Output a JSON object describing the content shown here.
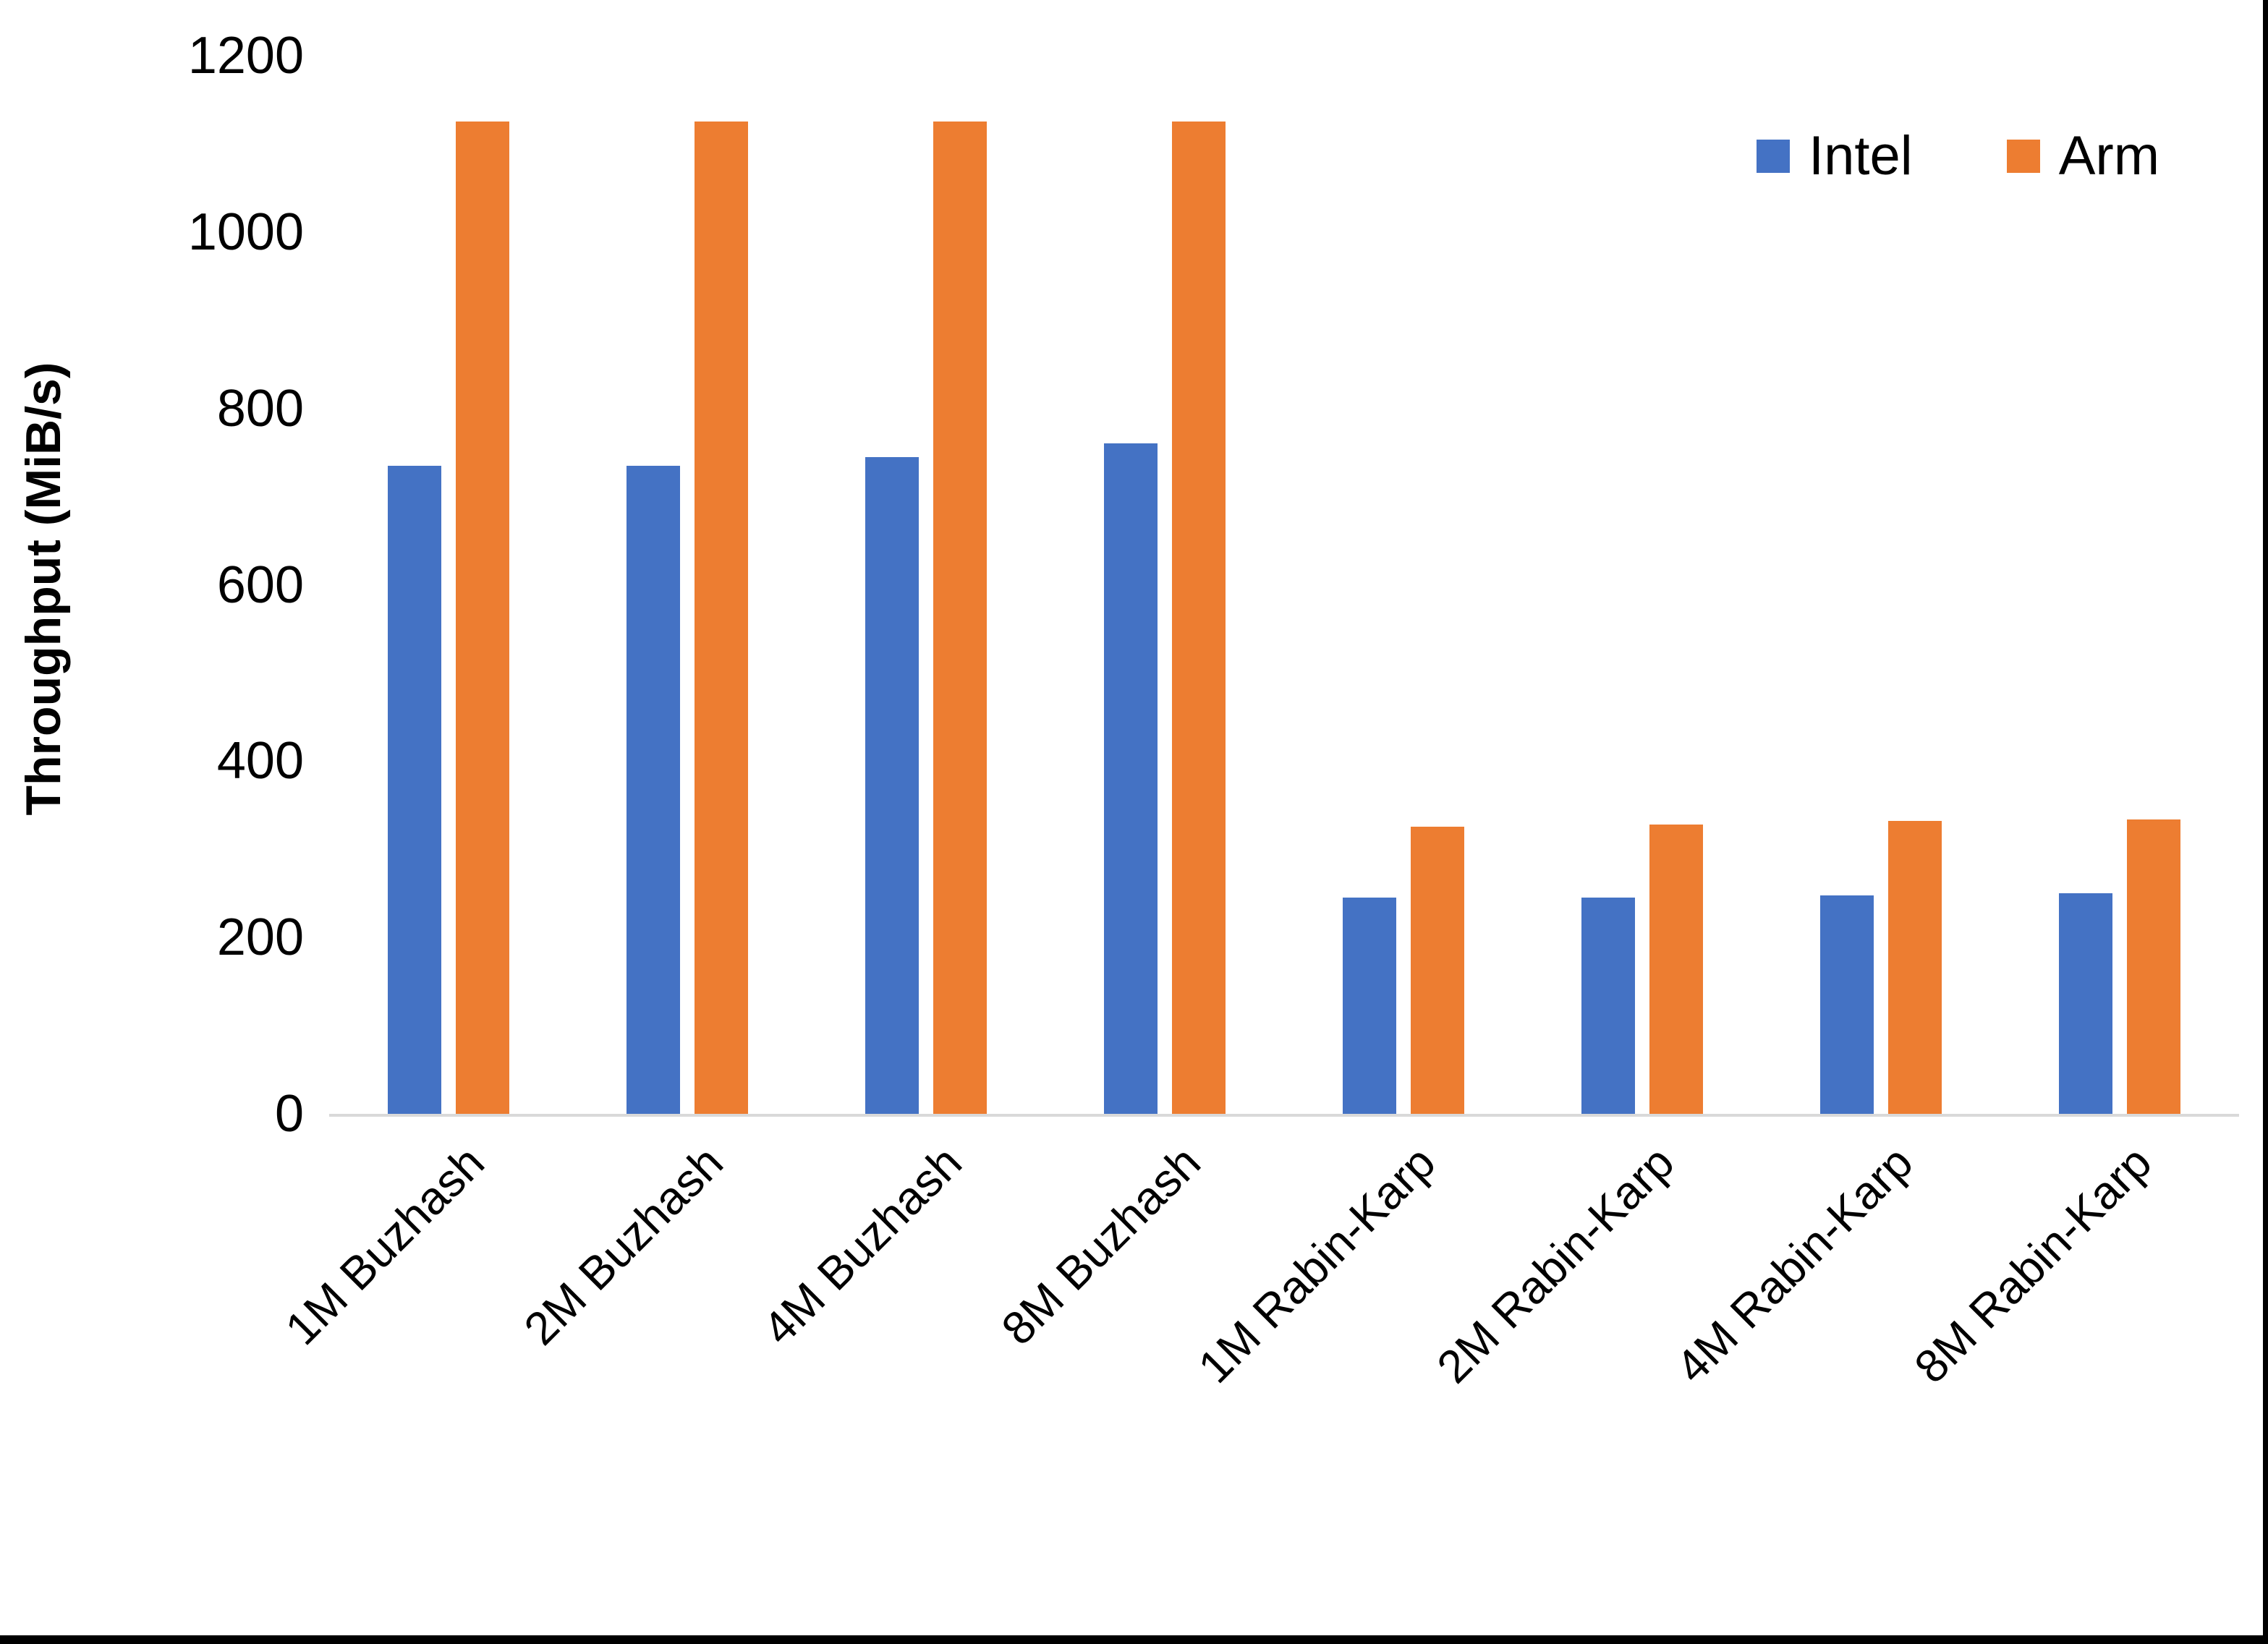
{
  "chart_data": {
    "type": "bar",
    "title": "",
    "xlabel": "",
    "ylabel": "Throughput (MiB/s)",
    "ylim": [
      0,
      1200
    ],
    "yticks": [
      0,
      200,
      400,
      600,
      800,
      1000,
      1200
    ],
    "grid": false,
    "legend_position": "top-right",
    "categories": [
      "1M Buzhash",
      "2M Buzhash",
      "4M Buzhash",
      "8M Buzhash",
      "1M Rabin-Karp",
      "2M Rabin-Karp",
      "4M Rabin-Karp",
      "8M Rabin-Karp"
    ],
    "series": [
      {
        "name": "Intel",
        "color": "#4472C4",
        "values": [
          735,
          735,
          745,
          760,
          245,
          245,
          248,
          250
        ]
      },
      {
        "name": "Arm",
        "color": "#ED7D31",
        "values": [
          1125,
          1125,
          1125,
          1125,
          326,
          328,
          332,
          334
        ]
      }
    ]
  },
  "colors": {
    "background": "#FFFFFF",
    "axis_line": "#D9D9D9",
    "text": "#000000",
    "screen_border": "#000000"
  }
}
